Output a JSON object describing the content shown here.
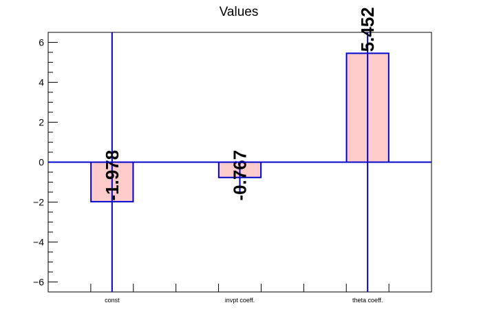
{
  "chart_data": {
    "type": "bar",
    "title": "Values",
    "xlabel": "",
    "ylabel": "",
    "categories": [
      "const",
      "invpt coeff.",
      "theta coeff."
    ],
    "values": [
      -1.978,
      -0.767,
      5.452
    ],
    "value_labels": [
      "-1.978",
      "-0.767",
      "5.452"
    ],
    "error_bars": [
      {
        "low": -6.5,
        "high": 6.5
      },
      {
        "low": -1.55,
        "high": 0.0
      },
      {
        "low": -6.5,
        "high": 6.5
      }
    ],
    "ylim": [
      -6.5,
      6.5
    ],
    "yticks": [
      -6,
      -4,
      -2,
      0,
      2,
      4,
      6
    ],
    "ytick_labels": [
      "−6",
      "−4",
      "−2",
      "0",
      "2",
      "4",
      "6"
    ],
    "grid": false,
    "colors": {
      "bar_fill": "#ffcccc",
      "bar_edge": "#0000cc",
      "axis": "#000000"
    }
  }
}
